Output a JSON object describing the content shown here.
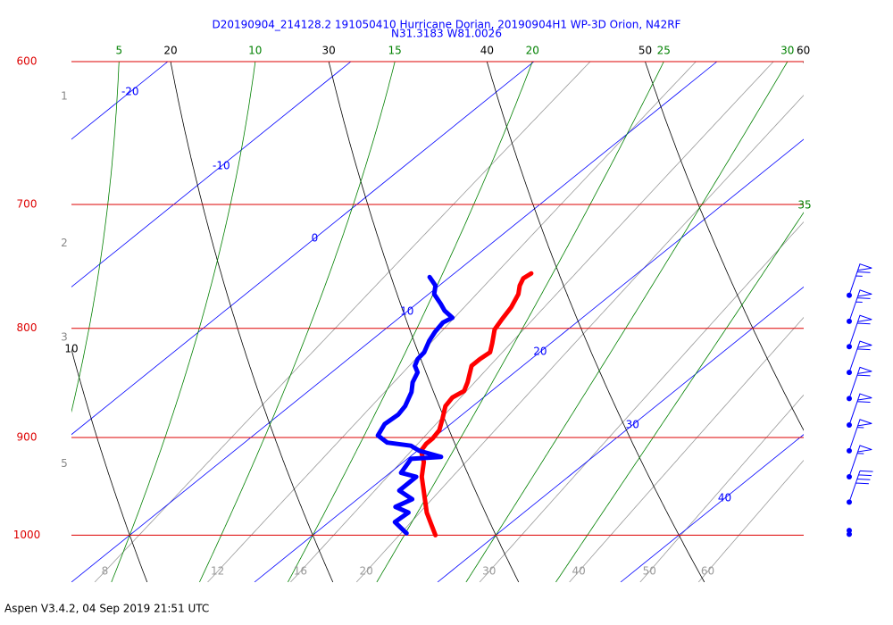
{
  "chart_data": {
    "type": "skewt",
    "title": "D20190904_214128.2 191050410 Hurricane Dorian, 20190904H1 WP-3D Orion, N42RF",
    "subtitle": "N31.3183 W81.0026",
    "footer": "Aspen V3.4.2, 04 Sep 2019  21:51 UTC",
    "log_y": true,
    "ylim": [
      1052,
      600
    ],
    "yticks": [
      600,
      700,
      800,
      900,
      1000
    ],
    "xlim": [
      10,
      50
    ],
    "grid_color": "#dd0000",
    "isotherms": [
      -20,
      -10,
      0,
      10,
      20,
      30,
      40
    ],
    "isotherm_color": "#0000ff",
    "dry_adiabats": [
      10,
      20,
      30,
      40,
      50,
      60
    ],
    "dry_adiabat_color": "#000000",
    "moist_adiabats": [
      5,
      10,
      15,
      20,
      25,
      30,
      35
    ],
    "moist_adiabat_color": "#008000",
    "mixing_ratios": [
      8,
      12,
      16,
      20,
      30,
      40,
      50,
      60
    ],
    "mixing_ratio_color": "#999999",
    "height_ticks": [
      {
        "p": 623,
        "label": "1"
      },
      {
        "p": 730,
        "label": "2"
      },
      {
        "p": 808,
        "label": "3"
      },
      {
        "p": 926,
        "label": "5"
      }
    ],
    "temperature": {
      "color": "#ff0000",
      "p": [
        754,
        758,
        764,
        771,
        782,
        792,
        801,
        813,
        821,
        827,
        833,
        848,
        856,
        862,
        870,
        882,
        893,
        901,
        906,
        913,
        924,
        939,
        958,
        976,
        988,
        1000
      ],
      "t": [
        14.2,
        14.1,
        14.4,
        14.9,
        15.4,
        15.7,
        16.0,
        16.8,
        17.3,
        17.2,
        17.2,
        18.1,
        18.5,
        18.3,
        18.5,
        19.2,
        19.8,
        20.0,
        20.0,
        20.2,
        21.1,
        22.0,
        23.4,
        24.7,
        25.7,
        26.7
      ]
    },
    "dewpoint": {
      "color": "#0000ff",
      "p": [
        757,
        764,
        771,
        779,
        785,
        791,
        795,
        803,
        811,
        821,
        827,
        833,
        839,
        848,
        857,
        870,
        878,
        887,
        898,
        905,
        908,
        913,
        919,
        921,
        935,
        939,
        953,
        962,
        970,
        976,
        986,
        998
      ],
      "t": [
        8.9,
        9.8,
        10.3,
        11.3,
        12.0,
        12.9,
        12.7,
        12.9,
        13.2,
        13.7,
        13.8,
        14.1,
        14.7,
        15.1,
        15.7,
        16.3,
        16.5,
        16.4,
        16.8,
        17.8,
        19.3,
        20.1,
        21.7,
        20.2,
        20.6,
        21.7,
        21.7,
        23.0,
        22.6,
        23.7,
        23.6,
        25.0
      ]
    },
    "wind": {
      "color": "#0000ff",
      "p": [
        772,
        794,
        816,
        839,
        863,
        888,
        913,
        939,
        965,
        995,
        999
      ],
      "speed": [
        65,
        65,
        60,
        60,
        60,
        60,
        55,
        55,
        40,
        0,
        0
      ]
    }
  }
}
